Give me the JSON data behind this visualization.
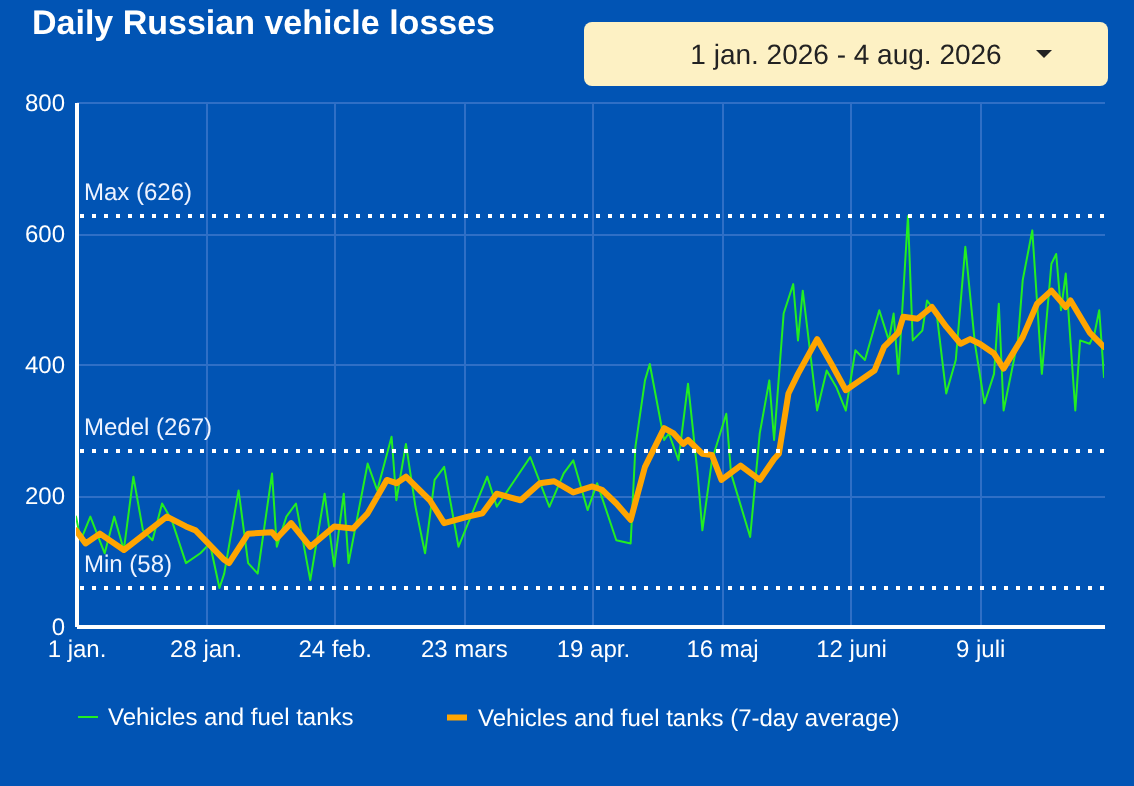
{
  "chart_data": {
    "type": "line",
    "title": "Daily Russian vehicle losses",
    "annotations": [
      "1 jan. 2026 - 4 aug. 2026"
    ],
    "xlim": [
      "2026-01-01",
      "2026-08-04"
    ],
    "xticks": [
      {
        "value": "2026-01-01",
        "label": "1 jan."
      },
      {
        "value": "2026-01-28",
        "label": "28 jan."
      },
      {
        "value": "2026-02-24",
        "label": "24 feb."
      },
      {
        "value": "2026-03-23",
        "label": "23 mars"
      },
      {
        "value": "2026-04-19",
        "label": "19 apr."
      },
      {
        "value": "2026-05-16",
        "label": "16 maj"
      },
      {
        "value": "2026-06-12",
        "label": "12 juni"
      },
      {
        "value": "2026-07-09",
        "label": "9 juli"
      }
    ],
    "ylim": [
      0,
      800
    ],
    "yticks": [
      0,
      200,
      400,
      600,
      800
    ],
    "grid": true,
    "legend": "bottom",
    "ref_lines": [
      {
        "axis": "y",
        "value": 626,
        "label": "Max (626)",
        "color": "#ffffff",
        "line_style": "dotted"
      },
      {
        "axis": "y",
        "value": 267,
        "label": "Medel (267)",
        "color": "#ffffff",
        "line_style": "dotted"
      },
      {
        "axis": "y",
        "value": 58,
        "label": "Min (58)",
        "color": "#ffffff",
        "line_style": "dotted"
      }
    ],
    "series": [
      {
        "name": "Vehicles and fuel tanks",
        "color": "#22ee22",
        "x": [
          "2026-01-01",
          "2026-01-02",
          "2026-01-04",
          "2026-01-07",
          "2026-01-09",
          "2026-01-11",
          "2026-01-13",
          "2026-01-15",
          "2026-01-17",
          "2026-01-19",
          "2026-01-21",
          "2026-01-24",
          "2026-01-27",
          "2026-01-29",
          "2026-01-31",
          "2026-02-01",
          "2026-02-04",
          "2026-02-06",
          "2026-02-08",
          "2026-02-11",
          "2026-02-12",
          "2026-02-14",
          "2026-02-16",
          "2026-02-19",
          "2026-02-22",
          "2026-02-24",
          "2026-02-26",
          "2026-02-27",
          "2026-03-03",
          "2026-03-05",
          "2026-03-08",
          "2026-03-09",
          "2026-03-11",
          "2026-03-13",
          "2026-03-15",
          "2026-03-17",
          "2026-03-19",
          "2026-03-22",
          "2026-03-28",
          "2026-03-30",
          "2026-04-06",
          "2026-04-10",
          "2026-04-13",
          "2026-04-15",
          "2026-04-18",
          "2026-04-20",
          "2026-04-24",
          "2026-04-27",
          "2026-04-28",
          "2026-04-30",
          "2026-05-01",
          "2026-05-04",
          "2026-05-05",
          "2026-05-07",
          "2026-05-09",
          "2026-05-11",
          "2026-05-12",
          "2026-05-14",
          "2026-05-17",
          "2026-05-18",
          "2026-05-22",
          "2026-05-24",
          "2026-05-26",
          "2026-05-27",
          "2026-05-29",
          "2026-05-31",
          "2026-06-01",
          "2026-06-02",
          "2026-06-05",
          "2026-06-07",
          "2026-06-09",
          "2026-06-11",
          "2026-06-13",
          "2026-06-15",
          "2026-06-18",
          "2026-06-20",
          "2026-06-21",
          "2026-06-22",
          "2026-06-24",
          "2026-06-25",
          "2026-06-27",
          "2026-06-28",
          "2026-06-30",
          "2026-07-02",
          "2026-07-04",
          "2026-07-06",
          "2026-07-08",
          "2026-07-10",
          "2026-07-12",
          "2026-07-13",
          "2026-07-14",
          "2026-07-17",
          "2026-07-18",
          "2026-07-20",
          "2026-07-22",
          "2026-07-24",
          "2026-07-25",
          "2026-07-26",
          "2026-07-27",
          "2026-07-29",
          "2026-07-30",
          "2026-08-01",
          "2026-08-02",
          "2026-08-03",
          "2026-08-04"
        ],
        "values": [
          167,
          131,
          167,
          111,
          167,
          116,
          228,
          146,
          131,
          187,
          162,
          96,
          111,
          126,
          58,
          80,
          207,
          96,
          80,
          233,
          121,
          167,
          187,
          70,
          202,
          91,
          202,
          96,
          248,
          207,
          289,
          192,
          278,
          182,
          111,
          223,
          243,
          121,
          228,
          182,
          258,
          182,
          233,
          253,
          177,
          218,
          131,
          126,
          274,
          375,
          400,
          284,
          294,
          253,
          370,
          233,
          146,
          253,
          324,
          233,
          136,
          294,
          375,
          284,
          477,
          522,
          436,
          512,
          329,
          390,
          365,
          329,
          421,
          406,
          482,
          436,
          477,
          385,
          626,
          436,
          451,
          497,
          477,
          355,
          406,
          579,
          431,
          340,
          385,
          492,
          329,
          436,
          528,
          604,
          385,
          553,
          568,
          482,
          538,
          329,
          436,
          431,
          446,
          482,
          380
        ]
      },
      {
        "name": "Vehicles and fuel tanks (7-day average)",
        "color": "#ffa500",
        "x": [
          "2026-01-01",
          "2026-01-03",
          "2026-01-06",
          "2026-01-11",
          "2026-01-20",
          "2026-01-24",
          "2026-01-26",
          "2026-02-01",
          "2026-02-02",
          "2026-02-06",
          "2026-02-11",
          "2026-02-12",
          "2026-02-15",
          "2026-02-19",
          "2026-02-24",
          "2026-02-28",
          "2026-03-03",
          "2026-03-07",
          "2026-03-09",
          "2026-03-11",
          "2026-03-16",
          "2026-03-19",
          "2026-03-24",
          "2026-03-27",
          "2026-03-30",
          "2026-04-04",
          "2026-04-08",
          "2026-04-11",
          "2026-04-15",
          "2026-04-19",
          "2026-04-21",
          "2026-04-24",
          "2026-04-27",
          "2026-04-30",
          "2026-05-04",
          "2026-05-06",
          "2026-05-08",
          "2026-05-09",
          "2026-05-12",
          "2026-05-14",
          "2026-05-16",
          "2026-05-20",
          "2026-05-24",
          "2026-05-27",
          "2026-05-28",
          "2026-05-30",
          "2026-06-01",
          "2026-06-05",
          "2026-06-08",
          "2026-06-11",
          "2026-06-14",
          "2026-06-17",
          "2026-06-19",
          "2026-06-22",
          "2026-06-23",
          "2026-06-26",
          "2026-06-29",
          "2026-07-02",
          "2026-07-05",
          "2026-07-07",
          "2026-07-09",
          "2026-07-12",
          "2026-07-14",
          "2026-07-18",
          "2026-07-21",
          "2026-07-24",
          "2026-07-27",
          "2026-07-28",
          "2026-08-01",
          "2026-08-04"
        ],
        "values": [
          146,
          126,
          141,
          116,
          167,
          152,
          146,
          101,
          96,
          141,
          143,
          134,
          157,
          121,
          152,
          149,
          172,
          223,
          218,
          228,
          192,
          157,
          167,
          172,
          202,
          192,
          218,
          221,
          204,
          213,
          208,
          187,
          162,
          243,
          302,
          294,
          278,
          284,
          263,
          261,
          223,
          245,
          223,
          255,
          263,
          355,
          385,
          438,
          400,
          360,
          375,
          390,
          426,
          448,
          472,
          469,
          487,
          457,
          431,
          438,
          431,
          416,
          393,
          441,
          492,
          512,
          487,
          497,
          448,
          426
        ]
      }
    ]
  }
}
